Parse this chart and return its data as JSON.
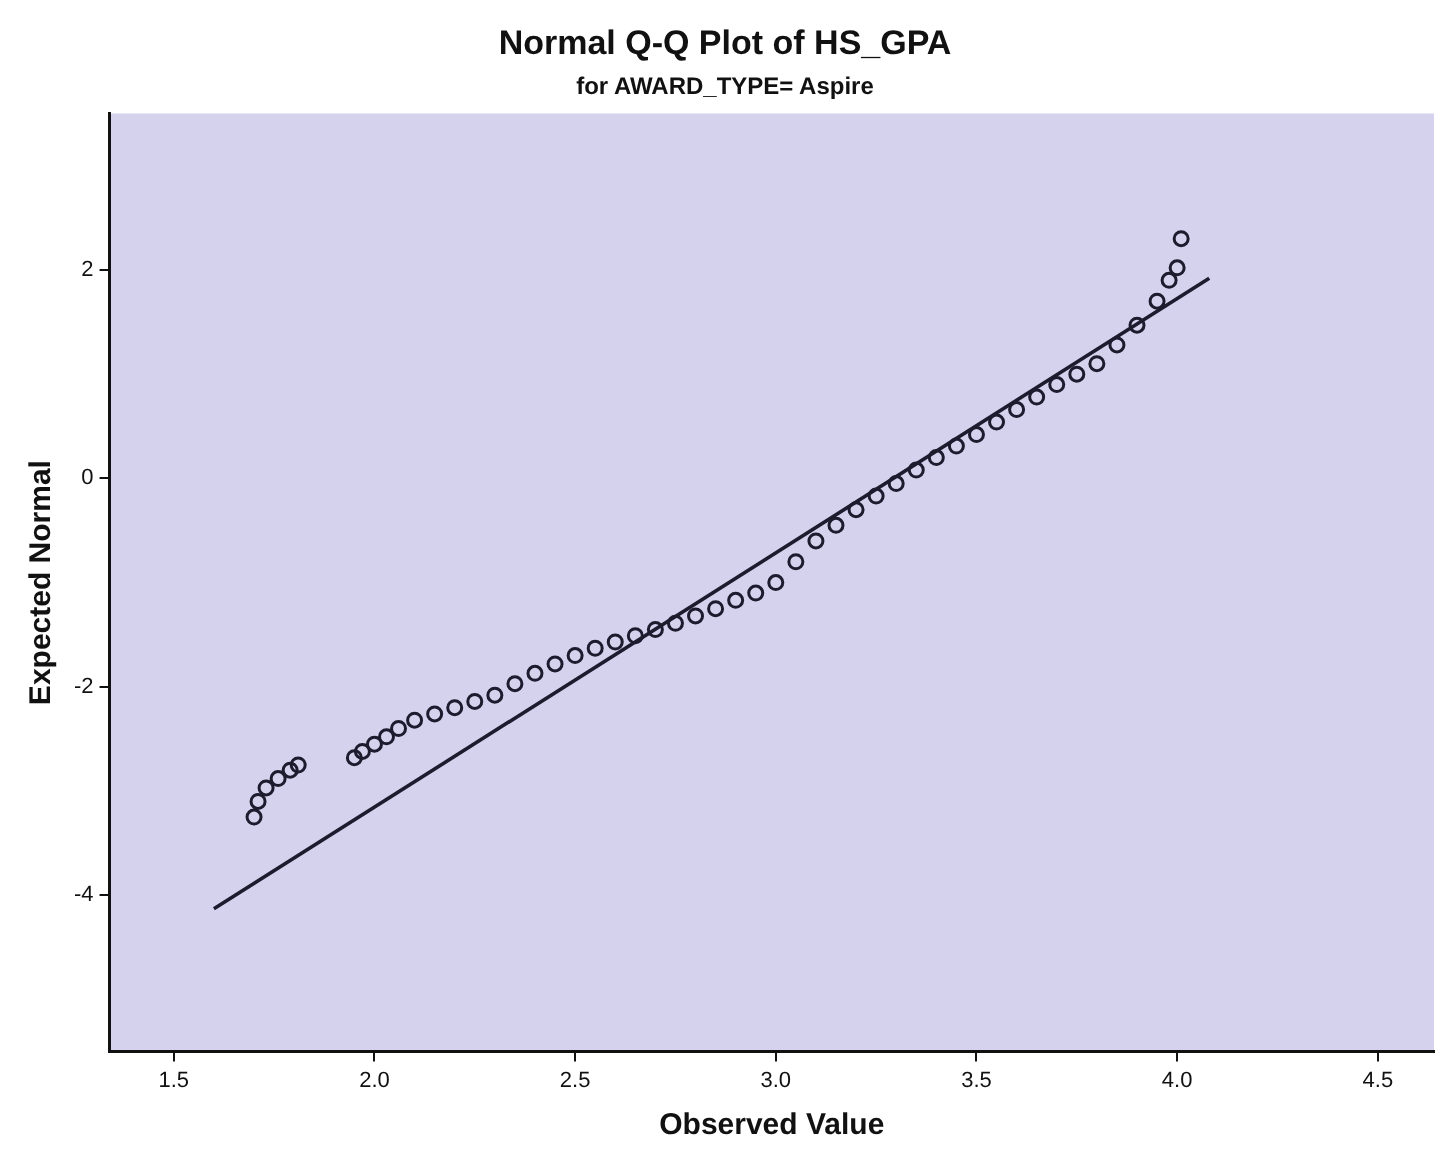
{
  "chart_data": {
    "type": "scatter",
    "title": "Normal Q-Q Plot of HS_GPA",
    "subtitle": "for AWARD_TYPE= Aspire",
    "xlabel": "Observed Value",
    "ylabel": "Expected Normal",
    "xlim": [
      1.34,
      4.64
    ],
    "xticks": [
      {
        "value": 1.5,
        "label": "1.5"
      },
      {
        "value": 2,
        "label": "2.0"
      },
      {
        "value": 2.5,
        "label": "2.5"
      },
      {
        "value": 3,
        "label": "3.0"
      },
      {
        "value": 3.5,
        "label": "3.5"
      },
      {
        "value": 4,
        "label": "4.0"
      },
      {
        "value": 4.5,
        "label": "4.5"
      }
    ],
    "ylim": [
      -5.5,
      3.5
    ],
    "yticks": [
      -4,
      -2,
      0,
      2
    ],
    "grid": false,
    "legend": false,
    "series": [
      {
        "marker": "circle",
        "color": "#1c1c2e",
        "x": [
          1.7,
          1.71,
          1.73,
          1.76,
          1.79,
          1.81,
          1.95,
          1.97,
          2.0,
          2.03,
          2.06,
          2.1,
          2.15,
          2.2,
          2.25,
          2.3,
          2.35,
          2.4,
          2.45,
          2.5,
          2.55,
          2.6,
          2.65,
          2.7,
          2.75,
          2.8,
          2.85,
          2.9,
          2.95,
          3.0,
          3.05,
          3.1,
          3.15,
          3.2,
          3.25,
          3.3,
          3.35,
          3.4,
          3.45,
          3.5,
          3.55,
          3.6,
          3.65,
          3.7,
          3.75,
          3.8,
          3.85,
          3.9,
          3.95,
          3.98,
          4.0,
          4.01
        ],
        "values": [
          -3.25,
          -3.1,
          -2.97,
          -2.88,
          -2.8,
          -2.75,
          -2.68,
          -2.62,
          -2.55,
          -2.48,
          -2.4,
          -2.32,
          -2.26,
          -2.2,
          -2.14,
          -2.08,
          -1.97,
          -1.87,
          -1.78,
          -1.7,
          -1.63,
          -1.57,
          -1.51,
          -1.45,
          -1.39,
          -1.32,
          -1.25,
          -1.17,
          -1.1,
          -1.0,
          -0.8,
          -0.6,
          -0.45,
          -0.3,
          -0.17,
          -0.05,
          0.08,
          0.2,
          0.31,
          0.42,
          0.54,
          0.66,
          0.78,
          0.9,
          1.0,
          1.1,
          1.28,
          1.47,
          1.7,
          1.9,
          2.02,
          2.3
        ]
      },
      {
        "type": "line",
        "marker": "none",
        "line_style": "solid",
        "color": "#1c1c2e",
        "x": [
          1.6,
          4.08
        ],
        "values": [
          -4.13,
          1.92
        ]
      }
    ]
  }
}
